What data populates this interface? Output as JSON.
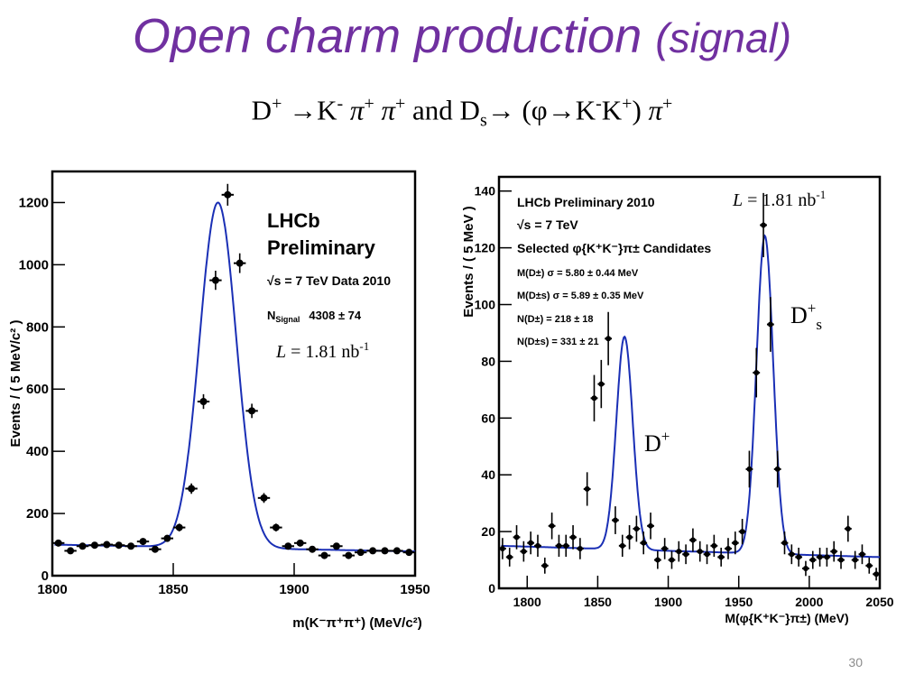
{
  "slide": {
    "title_main": "Open charm production",
    "title_paren": "(signal)",
    "decay_line": {
      "d": "D",
      "plus": "+",
      "arrow1": "→K",
      "minus": "-",
      "pi1": "π",
      "plus2": "+",
      "pi2": "π",
      "plus3": "+",
      "and": "and",
      "ds": "D",
      "s": "s",
      "arrow2": "→ (φ→K",
      "kminus": "-",
      "kplus": "K",
      "plus4": "+",
      "close": ")",
      "pi3": "π",
      "plus5": "+"
    },
    "page_number": "30"
  },
  "chart_data": [
    {
      "type": "scatter",
      "xlabel": "m(K⁻π⁺π⁺) (MeV/c²)",
      "ylabel": "Events / ( 5 MeV/c² )",
      "xlim": [
        1800,
        1950
      ],
      "ylim": [
        0,
        1300
      ],
      "xticks": [
        "1800",
        "1850",
        "1900",
        "1950"
      ],
      "yticks": [
        "0",
        "200",
        "400",
        "600",
        "800",
        "1000",
        "1200"
      ],
      "annotations": {
        "experiment": "LHCb",
        "status": "Preliminary",
        "energy": "√s = 7 TeV Data 2010",
        "nsignal_label": "N",
        "nsignal_sub": "Signal",
        "nsignal_value": "4308 ± 74",
        "lumi_L": "L",
        "lumi_value": " = 1.81 nb",
        "lumi_exp": "-1"
      },
      "points": {
        "x": [
          1802.5,
          1807.5,
          1812.5,
          1817.5,
          1822.5,
          1827.5,
          1832.5,
          1837.5,
          1842.5,
          1847.5,
          1852.5,
          1857.5,
          1862.5,
          1867.5,
          1872.5,
          1877.5,
          1882.5,
          1887.5,
          1892.5,
          1897.5,
          1902.5,
          1907.5,
          1912.5,
          1917.5,
          1922.5,
          1927.5,
          1932.5,
          1937.5,
          1942.5,
          1947.5
        ],
        "y": [
          105,
          80,
          95,
          98,
          100,
          98,
          95,
          110,
          85,
          120,
          155,
          280,
          560,
          950,
          1225,
          1005,
          530,
          250,
          155,
          95,
          105,
          85,
          65,
          95,
          65,
          75,
          80,
          80,
          80,
          75
        ]
      },
      "fit": {
        "mean": 1868.5,
        "sigma": 7.6,
        "amplitude": 1110,
        "baseline": [
          100,
          78
        ]
      }
    },
    {
      "type": "scatter",
      "xlabel": "M(φ{K⁺K⁻}π±) (MeV)",
      "ylabel": "Events / ( 5 MeV )",
      "xlim": [
        1780,
        2050
      ],
      "ylim": [
        0,
        145
      ],
      "xticks": [
        "1800",
        "1850",
        "1900",
        "1950",
        "2000",
        "2050"
      ],
      "yticks": [
        "0",
        "20",
        "40",
        "60",
        "80",
        "100",
        "120",
        "140"
      ],
      "annotations": {
        "line1": "LHCb Preliminary 2010",
        "line2": "√s = 7 TeV",
        "line3": "Selected φ{K⁺K⁻}π± Candidates",
        "line4": "M(D±) σ = 5.80 ± 0.44 MeV",
        "line5": "M(D±s) σ = 5.89 ± 0.35 MeV",
        "line6": "N(D±) = 218 ± 18",
        "line7": "N(D±s) = 331 ± 21",
        "lumi_L": "L",
        "lumi_value": " = 1.81 nb",
        "lumi_exp": "-1",
        "peak1_label": "D",
        "peak1_sup": "+",
        "peak2_label": "D",
        "peak2_sup": "+",
        "peak2_sub": "s"
      },
      "points": {
        "x": [
          1782.5,
          1787.5,
          1792.5,
          1797.5,
          1802.5,
          1807.5,
          1812.5,
          1817.5,
          1822.5,
          1827.5,
          1832.5,
          1837.5,
          1842.5,
          1847.5,
          1852.5,
          1857.5,
          1862.5,
          1867.5,
          1872.5,
          1877.5,
          1882.5,
          1887.5,
          1892.5,
          1897.5,
          1902.5,
          1907.5,
          1912.5,
          1917.5,
          1922.5,
          1927.5,
          1932.5,
          1937.5,
          1942.5,
          1947.5,
          1952.5,
          1957.5,
          1962.5,
          1967.5,
          1972.5,
          1977.5,
          1982.5,
          1987.5,
          1992.5,
          1997.5,
          2002.5,
          2007.5,
          2012.5,
          2017.5,
          2022.5,
          2027.5,
          2032.5,
          2037.5,
          2042.5,
          2047.5
        ],
        "y": [
          14,
          11,
          18,
          13,
          16,
          15,
          8,
          22,
          15,
          15,
          18,
          14,
          35,
          67,
          72,
          88,
          24,
          15,
          18,
          21,
          16,
          22,
          10,
          14,
          10,
          13,
          12,
          17,
          13,
          12,
          15,
          11,
          14,
          16,
          20,
          42,
          76,
          128,
          93,
          42,
          16,
          12,
          11,
          7,
          10,
          11,
          11,
          13,
          10,
          21,
          10,
          12,
          8,
          5
        ]
      },
      "fit": {
        "peaks": [
          {
            "mean": 1869.0,
            "sigma": 5.8,
            "amplitude": 75
          },
          {
            "mean": 1968.5,
            "sigma": 5.9,
            "amplitude": 112
          }
        ],
        "baseline": [
          15,
          11
        ]
      }
    }
  ]
}
